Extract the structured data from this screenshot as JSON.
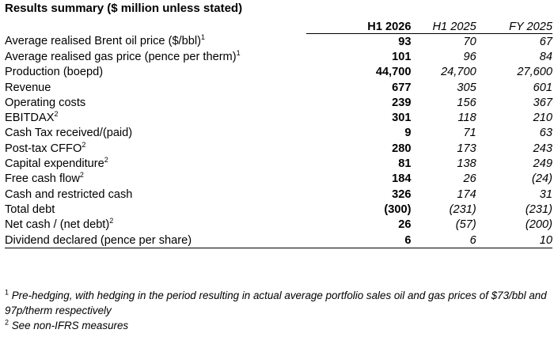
{
  "title": "Results summary ($ million unless stated)",
  "columns": {
    "label": "",
    "h1_2026": "H1 2026",
    "h1_2025": "H1 2025",
    "fy_2025": "FY 2025"
  },
  "rows": [
    {
      "label": "Average realised Brent oil price ($/bbl)",
      "note": "1",
      "h1_2026": "93",
      "h1_2025": "70",
      "fy_2025": "67"
    },
    {
      "label": "Average realised gas price (pence per therm)",
      "note": "1",
      "h1_2026": "101",
      "h1_2025": "96",
      "fy_2025": "84"
    },
    {
      "label": "Production (boepd)",
      "note": "",
      "h1_2026": "44,700",
      "h1_2025": "24,700",
      "fy_2025": "27,600"
    },
    {
      "label": "Revenue",
      "note": "",
      "h1_2026": "677",
      "h1_2025": "305",
      "fy_2025": "601"
    },
    {
      "label": "Operating costs",
      "note": "",
      "h1_2026": "239",
      "h1_2025": "156",
      "fy_2025": "367"
    },
    {
      "label": "EBITDAX",
      "note": "2",
      "h1_2026": "301",
      "h1_2025": "118",
      "fy_2025": "210"
    },
    {
      "label": "Cash Tax received/(paid)",
      "note": "",
      "h1_2026": "9",
      "h1_2025": "71",
      "fy_2025": "63"
    },
    {
      "label": "Post-tax CFFO",
      "note": "2",
      "h1_2026": "280",
      "h1_2025": "173",
      "fy_2025": "243"
    },
    {
      "label": "Capital expenditure",
      "note": "2",
      "h1_2026": "81",
      "h1_2025": "138",
      "fy_2025": "249"
    },
    {
      "label": "Free cash flow",
      "note": "2",
      "h1_2026": "184",
      "h1_2025": "26",
      "fy_2025": "(24)"
    },
    {
      "label": "Cash and restricted cash",
      "note": "",
      "h1_2026": "326",
      "h1_2025": "174",
      "fy_2025": "31"
    },
    {
      "label": "Total debt",
      "note": "",
      "h1_2026": "(300)",
      "h1_2025": "(231)",
      "fy_2025": "(231)"
    },
    {
      "label": "Net cash / (net debt)",
      "note": "2",
      "h1_2026": "26",
      "h1_2025": "(57)",
      "fy_2025": "(200)"
    },
    {
      "label": "Dividend declared (pence per share)",
      "note": "",
      "h1_2026": "6",
      "h1_2025": "6",
      "fy_2025": "10"
    }
  ],
  "footnotes": [
    {
      "marker": "1",
      "text": "Pre-hedging, with hedging in the period resulting in actual average portfolio sales oil and gas prices of $73/bbl and 97p/therm respectively"
    },
    {
      "marker": "2",
      "text": "See non-IFRS measures"
    }
  ]
}
